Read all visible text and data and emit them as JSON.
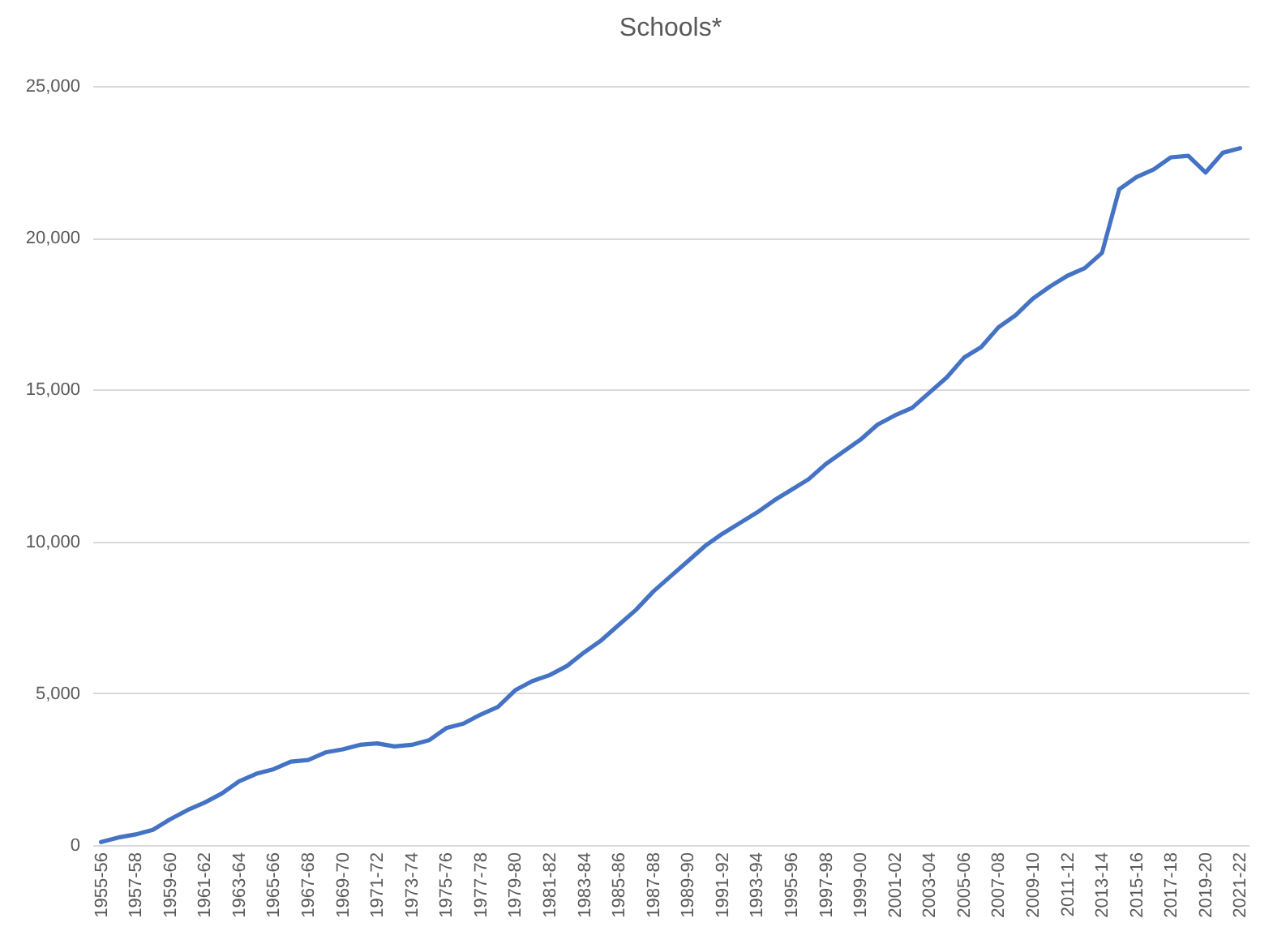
{
  "chart_data": {
    "type": "line",
    "title": "Schools*",
    "categories": [
      "1955-56",
      null,
      "1957-58",
      null,
      "1959-60",
      null,
      "1961-62",
      null,
      "1963-64",
      null,
      "1965-66",
      null,
      "1967-68",
      null,
      "1969-70",
      null,
      "1971-72",
      null,
      "1973-74",
      null,
      "1975-76",
      null,
      "1977-78",
      null,
      "1979-80",
      null,
      "1981-82",
      null,
      "1983-84",
      null,
      "1985-86",
      null,
      "1987-88",
      null,
      "1989-90",
      null,
      "1991-92",
      null,
      "1993-94",
      null,
      "1995-96",
      null,
      "1997-98",
      null,
      "1999-00",
      null,
      "2001-02",
      null,
      "2003-04",
      null,
      "2005-06",
      null,
      "2007-08",
      null,
      "2009-10",
      null,
      "2011-12",
      null,
      "2013-14",
      null,
      "2015-16",
      null,
      "2017-18",
      null,
      "2019-20",
      null,
      "2021-22"
    ],
    "series": [
      {
        "color": "#4472c4",
        "values": [
          100,
          250,
          350,
          500,
          850,
          1150,
          1400,
          1700,
          2100,
          2350,
          2500,
          2750,
          2800,
          3050,
          3150,
          3300,
          3350,
          3250,
          3300,
          3450,
          3850,
          4000,
          4300,
          4550,
          5100,
          5400,
          5600,
          5900,
          6350,
          6750,
          7250,
          7750,
          8350,
          8850,
          9350,
          9850,
          10250,
          10600,
          10950,
          11350,
          11700,
          12050,
          12550,
          12950,
          13350,
          13850,
          14150,
          14400,
          14900,
          15400,
          16050,
          16400,
          17050,
          17450,
          18000,
          18400,
          18750,
          19000,
          19500,
          21600,
          22000,
          22250,
          22650,
          22700,
          22150,
          22800,
          22950
        ]
      }
    ],
    "ylim": [
      0,
      25000
    ],
    "yticks": [
      0,
      {
        "value": 5000,
        "label": "5,000"
      },
      {
        "value": 10000,
        "label": "10,000"
      },
      {
        "value": 15000,
        "label": "15,000"
      },
      {
        "value": 20000,
        "label": "20,000"
      },
      {
        "value": 25000,
        "label": "25,000"
      }
    ],
    "grid": "y"
  }
}
